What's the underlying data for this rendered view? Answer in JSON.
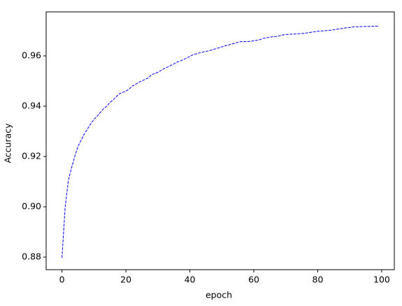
{
  "chart_data": {
    "type": "line",
    "xlabel": "epoch",
    "ylabel": "Accuracy",
    "x": [
      0,
      1,
      2,
      3,
      4,
      5,
      6,
      7,
      8,
      9,
      10,
      11,
      12,
      13,
      14,
      15,
      16,
      17,
      18,
      19,
      20,
      21,
      22,
      23,
      24,
      25,
      26,
      27,
      28,
      29,
      30,
      31,
      32,
      33,
      34,
      35,
      36,
      37,
      38,
      39,
      40,
      41,
      42,
      43,
      44,
      45,
      46,
      47,
      48,
      49,
      50,
      51,
      52,
      53,
      54,
      55,
      56,
      57,
      58,
      59,
      60,
      61,
      62,
      63,
      64,
      65,
      66,
      67,
      68,
      69,
      70,
      71,
      72,
      73,
      74,
      75,
      76,
      77,
      78,
      79,
      80,
      81,
      82,
      83,
      84,
      85,
      86,
      87,
      88,
      89,
      90,
      91,
      92,
      93,
      94,
      95,
      96,
      97,
      98,
      99
    ],
    "series": [
      {
        "color": "#0000ff",
        "dash": true,
        "values": [
          0.8797,
          0.9,
          0.9105,
          0.9155,
          0.92,
          0.924,
          0.9265,
          0.929,
          0.931,
          0.933,
          0.9348,
          0.936,
          0.9375,
          0.939,
          0.94,
          0.9415,
          0.9425,
          0.9438,
          0.945,
          0.9455,
          0.946,
          0.9468,
          0.948,
          0.9487,
          0.9495,
          0.95,
          0.9507,
          0.9512,
          0.9525,
          0.953,
          0.9535,
          0.9542,
          0.955,
          0.9555,
          0.9562,
          0.9568,
          0.9575,
          0.958,
          0.9585,
          0.9592,
          0.9598,
          0.9605,
          0.9608,
          0.9612,
          0.9615,
          0.9618,
          0.962,
          0.9624,
          0.9628,
          0.9632,
          0.9636,
          0.964,
          0.9643,
          0.9647,
          0.965,
          0.9654,
          0.9657,
          0.9657,
          0.9657,
          0.9658,
          0.966,
          0.9662,
          0.9665,
          0.967,
          0.9672,
          0.9675,
          0.9676,
          0.9677,
          0.968,
          0.9683,
          0.9685,
          0.9686,
          0.9686,
          0.9687,
          0.9688,
          0.9689,
          0.969,
          0.9692,
          0.9694,
          0.9696,
          0.9698,
          0.9699,
          0.97,
          0.9701,
          0.9702,
          0.9704,
          0.9706,
          0.9708,
          0.971,
          0.9712,
          0.9713,
          0.9715,
          0.9716,
          0.9716,
          0.9717,
          0.9717,
          0.9717,
          0.9718,
          0.9718,
          0.9719
        ]
      }
    ],
    "xlim": [
      -4.95,
      103.95
    ],
    "ylim": [
      0.875,
      0.9775
    ],
    "xticks": [
      0,
      20,
      40,
      60,
      80,
      100
    ],
    "yticks": [
      0.88,
      {
        "value": 0.9,
        "label": "0.90"
      },
      0.92,
      0.94,
      0.96
    ]
  }
}
